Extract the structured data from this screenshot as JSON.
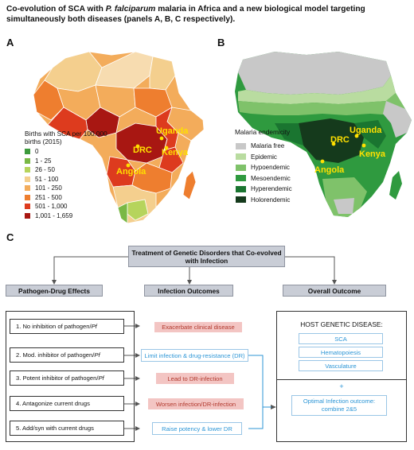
{
  "title": {
    "part1": "Co-evolution of SCA with ",
    "italic": "P. falciparum",
    "part2": " malaria in Africa and a new biological model targeting simultaneously both diseases (panels A, B, C respectively)."
  },
  "panels": {
    "a": "A",
    "b": "B",
    "c": "C"
  },
  "map_a": {
    "legend_title": "Births with SCA per 100.000 births (2015)",
    "legend": [
      {
        "label": "0",
        "color": "#3c9a3c"
      },
      {
        "label": "1 - 25",
        "color": "#79b845"
      },
      {
        "label": "26 - 50",
        "color": "#b6d45c"
      },
      {
        "label": "51 - 100",
        "color": "#f4cf8e"
      },
      {
        "label": "101 - 250",
        "color": "#f3ac5b"
      },
      {
        "label": "251 - 500",
        "color": "#ee7e2f"
      },
      {
        "label": "501 - 1,000",
        "color": "#dd3b1e"
      },
      {
        "label": "1,001 - 1,659",
        "color": "#a81712"
      }
    ],
    "labels": [
      "Uganda",
      "DRC",
      "Kenya",
      "Angola"
    ]
  },
  "map_b": {
    "legend_title": "Malaria endemicity",
    "legend": [
      {
        "label": "Malaria free",
        "color": "#c8c8c8"
      },
      {
        "label": "Epidemic",
        "color": "#b9dca0"
      },
      {
        "label": "Hypoendemic",
        "color": "#7fc26a"
      },
      {
        "label": "Mesoendemic",
        "color": "#2f9a3f"
      },
      {
        "label": "Hyperendemic",
        "color": "#1a7530"
      },
      {
        "label": "Holorendemic",
        "color": "#153a1c"
      }
    ],
    "labels": [
      "Uganda",
      "DRC",
      "Kenya",
      "Angola"
    ]
  },
  "panel_c": {
    "top_box": "Treatment of Genetic Disorders that Co-evolved with Infection",
    "headers": [
      "Pathogen-Drug Effects",
      "Infection Outcomes",
      "Overall Outcome"
    ],
    "effects": [
      {
        "text": "1. No inhibition of pathogen/",
        "italic": "Pf"
      },
      {
        "text": "2. Mod. inhibitor of pathogen/",
        "italic": "Pf"
      },
      {
        "text": "3. Potent inhibitor of pathogen/",
        "italic": "Pf"
      },
      {
        "text": "4. Antagonize current drugs",
        "italic": ""
      },
      {
        "text": "5. Add/syn with current drugs",
        "italic": ""
      }
    ],
    "outcomes": [
      {
        "text": "Exacerbate clinical disease",
        "kind": "pink"
      },
      {
        "text": "Limit infection & drug-resistance (DR)",
        "kind": "blue"
      },
      {
        "text": "Lead to DR-infection",
        "kind": "pink"
      },
      {
        "text": "Worsen infection/DR-infection",
        "kind": "pink"
      },
      {
        "text": "Raise potency & lower DR",
        "kind": "blue"
      }
    ],
    "host_title": "HOST GENETIC DISEASE:",
    "host_items": [
      "SCA",
      "Hematopoiesis",
      "Vasculature"
    ],
    "plus": "+",
    "optimal": "Optimal Infection outcome: combine 2&5"
  }
}
